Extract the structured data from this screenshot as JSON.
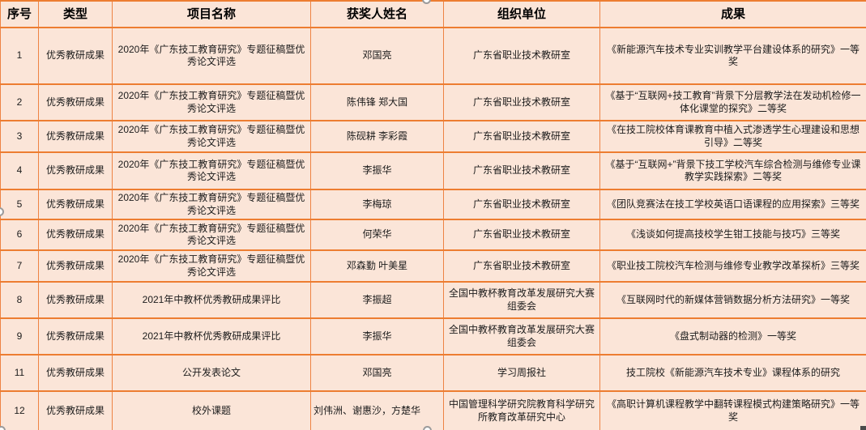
{
  "colors": {
    "cell_background": "#fbe5d8",
    "grid_border": "#ed7d31",
    "text": "#1c1c1c"
  },
  "selection_handles": [
    "top",
    "left",
    "bottom-left",
    "bottom"
  ],
  "table": {
    "headers": [
      "序号",
      "类型",
      "项目名称",
      "获奖人姓名",
      "组织单位",
      "成果"
    ],
    "rows": [
      {
        "no": "1",
        "type": "优秀教研成果",
        "project": "2020年《广东技工教育研究》专题征稿暨优秀论文评选",
        "names": "邓国亮",
        "org": "广东省职业技术教研室",
        "result": "《新能源汽车技术专业实训教学平台建设体系的研究》一等奖"
      },
      {
        "no": "2",
        "type": "优秀教研成果",
        "project": "2020年《广东技工教育研究》专题征稿暨优秀论文评选",
        "names": "陈伟锋 郑大国",
        "org": "广东省职业技术教研室",
        "result": "《基于“互联网+技工教育”背景下分层教学法在发动机检修一体化课堂的探究》二等奖"
      },
      {
        "no": "3",
        "type": "优秀教研成果",
        "project": "2020年《广东技工教育研究》专题征稿暨优秀论文评选",
        "names": "陈砚耕 李彩霞",
        "org": "广东省职业技术教研室",
        "result": "《在技工院校体育课教育中植入式渗透学生心理建设和思想引导》二等奖"
      },
      {
        "no": "4",
        "type": "优秀教研成果",
        "project": "2020年《广东技工教育研究》专题征稿暨优秀论文评选",
        "names": "李振华",
        "org": "广东省职业技术教研室",
        "result": "《基于“互联网+”背景下技工学校汽车综合检测与维修专业课教学实践探索》二等奖"
      },
      {
        "no": "5",
        "type": "优秀教研成果",
        "project": "2020年《广东技工教育研究》专题征稿暨优秀论文评选",
        "names": "李梅琼",
        "org": "广东省职业技术教研室",
        "result": "《团队竞赛法在技工学校英语口语课程的应用探索》三等奖"
      },
      {
        "no": "6",
        "type": "优秀教研成果",
        "project": "2020年《广东技工教育研究》专题征稿暨优秀论文评选",
        "names": "何荣华",
        "org": "广东省职业技术教研室",
        "result": "《浅谈如何提高技校学生钳工技能与技巧》三等奖"
      },
      {
        "no": "7",
        "type": "优秀教研成果",
        "project": "2020年《广东技工教育研究》专题征稿暨优秀论文评选",
        "names": "邓森勤 叶美星",
        "org": "广东省职业技术教研室",
        "result": "《职业技工院校汽车检测与维修专业教学改革探析》三等奖"
      },
      {
        "no": "8",
        "type": "优秀教研成果",
        "project": "2021年中教杯优秀教研成果评比",
        "names": "李振超",
        "org": "全国中教杯教育改革发展研究大赛组委会",
        "result": "《互联网时代的新媒体营销数据分析方法研究》一等奖"
      },
      {
        "no": "9",
        "type": "优秀教研成果",
        "project": "2021年中教杯优秀教研成果评比",
        "names": "李振华",
        "org": "全国中教杯教育改革发展研究大赛组委会",
        "result": "《盘式制动器的检测》一等奖"
      },
      {
        "no": "11",
        "type": "优秀教研成果",
        "project": "公开发表论文",
        "names": "邓国亮",
        "org": "学习周报社",
        "result": "技工院校《新能源汽车技术专业》课程体系的研究"
      },
      {
        "no": "12",
        "type": "优秀教研成果",
        "project": "校外课题",
        "names": "刘伟洲、谢惠沙，方楚华",
        "org": "中国管理科学研究院教育科学研究所教育改革研究中心",
        "result": "《高职计算机课程教学中翻转课程模式构建策略研究》一等奖"
      }
    ]
  }
}
